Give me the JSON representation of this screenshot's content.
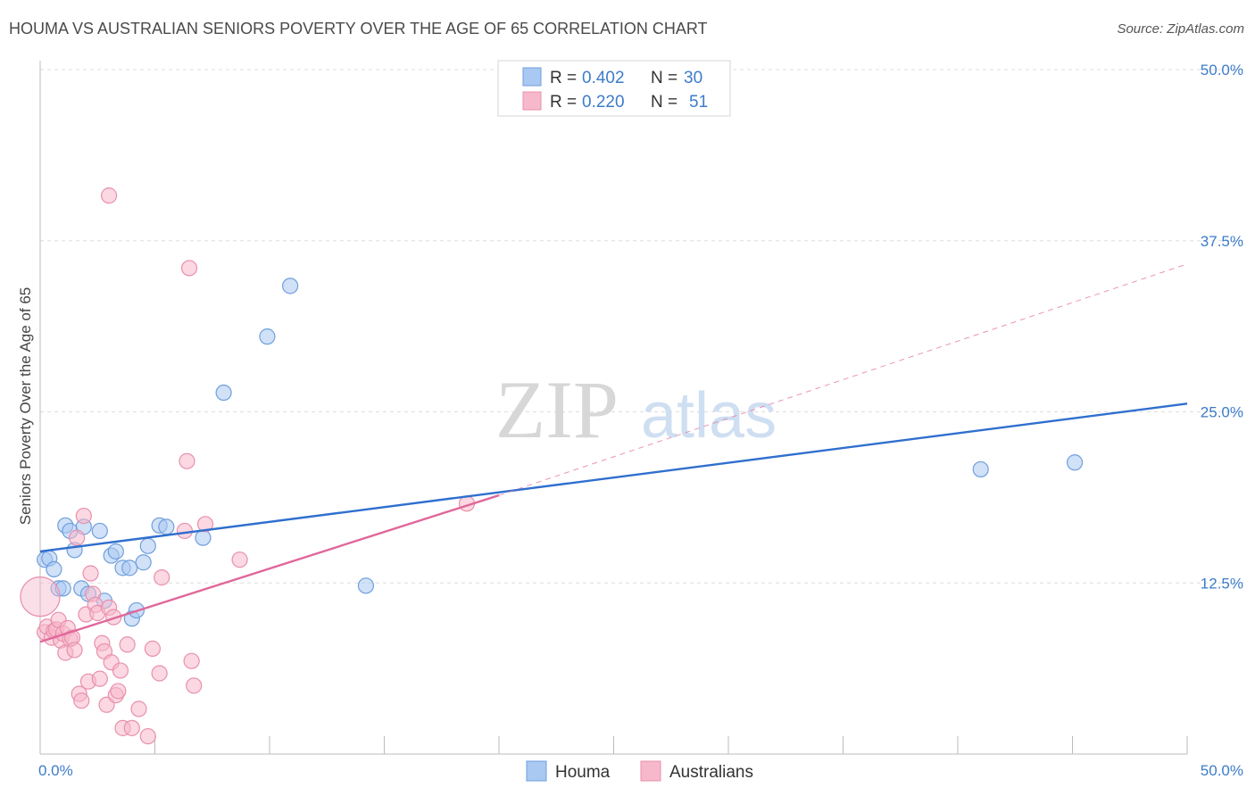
{
  "title": "HOUMA VS AUSTRALIAN SENIORS POVERTY OVER THE AGE OF 65 CORRELATION CHART",
  "source": "Source: ZipAtlas.com",
  "watermark": {
    "zip": "ZIP",
    "atlas": "atlas"
  },
  "chart_data": {
    "type": "scatter",
    "ylabel": "Seniors Poverty Over the Age of 65",
    "xlim": [
      0,
      50
    ],
    "ylim": [
      0,
      50
    ],
    "x_tick_labels": [
      "0.0%",
      "50.0%"
    ],
    "y_ticks": [
      12.5,
      25.0,
      37.5,
      50.0
    ],
    "y_tick_labels": [
      "12.5%",
      "25.0%",
      "37.5%",
      "50.0%"
    ],
    "grid": true,
    "legend_position": "top-center",
    "series": [
      {
        "name": "Houma",
        "color": "#a9c8f2",
        "edge": "#6f9fdc",
        "line_color": "#2f6fcf",
        "r_label": "R =",
        "r_value": "0.402",
        "n_label": "N =",
        "n_value": "30",
        "trend": {
          "x": [
            0,
            50
          ],
          "y": [
            14.8,
            25.6
          ]
        },
        "points": [
          [
            0.2,
            14.2
          ],
          [
            0.4,
            14.3
          ],
          [
            0.6,
            13.5
          ],
          [
            0.8,
            12.1
          ],
          [
            1.0,
            12.1
          ],
          [
            1.1,
            16.7
          ],
          [
            1.3,
            16.3
          ],
          [
            1.5,
            14.9
          ],
          [
            1.8,
            12.1
          ],
          [
            1.9,
            16.6
          ],
          [
            2.1,
            11.7
          ],
          [
            2.6,
            16.3
          ],
          [
            2.8,
            11.2
          ],
          [
            3.1,
            14.5
          ],
          [
            3.3,
            14.8
          ],
          [
            3.6,
            13.6
          ],
          [
            3.9,
            13.6
          ],
          [
            4.0,
            9.9
          ],
          [
            4.2,
            10.5
          ],
          [
            4.5,
            14.0
          ],
          [
            4.7,
            15.2
          ],
          [
            5.2,
            16.7
          ],
          [
            5.5,
            16.6
          ],
          [
            7.1,
            15.8
          ],
          [
            8.0,
            26.4
          ],
          [
            9.9,
            30.5
          ],
          [
            10.9,
            34.2
          ],
          [
            14.2,
            12.3
          ],
          [
            41.0,
            20.8
          ],
          [
            45.1,
            21.3
          ]
        ]
      },
      {
        "name": "Australians",
        "color": "#f7b8cb",
        "edge": "#e890ad",
        "line_color": "#e0679a",
        "r_label": "R =",
        "r_value": "0.220",
        "n_label": "N =",
        "n_value": "51",
        "trend": {
          "x": [
            0,
            20
          ],
          "y": [
            8.2,
            18.9
          ]
        },
        "trend_ext": {
          "x": [
            20,
            50
          ],
          "y": [
            18.9,
            35.8
          ]
        },
        "points": [
          [
            0.0,
            11.5
          ],
          [
            0.2,
            8.9
          ],
          [
            0.3,
            9.3
          ],
          [
            0.5,
            8.5
          ],
          [
            0.6,
            9.0
          ],
          [
            0.7,
            9.1
          ],
          [
            0.8,
            9.8
          ],
          [
            0.9,
            8.3
          ],
          [
            1.0,
            8.8
          ],
          [
            1.1,
            7.4
          ],
          [
            1.2,
            9.2
          ],
          [
            1.3,
            8.4
          ],
          [
            1.4,
            8.5
          ],
          [
            1.5,
            7.6
          ],
          [
            1.6,
            15.8
          ],
          [
            1.7,
            4.4
          ],
          [
            1.8,
            3.9
          ],
          [
            1.9,
            17.4
          ],
          [
            2.0,
            10.2
          ],
          [
            2.1,
            5.3
          ],
          [
            2.2,
            13.2
          ],
          [
            2.3,
            11.7
          ],
          [
            2.4,
            10.9
          ],
          [
            2.5,
            10.3
          ],
          [
            2.6,
            5.5
          ],
          [
            2.7,
            8.1
          ],
          [
            2.8,
            7.5
          ],
          [
            2.9,
            3.6
          ],
          [
            3.0,
            10.7
          ],
          [
            3.1,
            6.7
          ],
          [
            3.2,
            10.0
          ],
          [
            3.3,
            4.3
          ],
          [
            3.4,
            4.6
          ],
          [
            3.5,
            6.1
          ],
          [
            3.6,
            1.9
          ],
          [
            3.8,
            8.0
          ],
          [
            4.0,
            1.9
          ],
          [
            4.3,
            3.3
          ],
          [
            4.7,
            1.3
          ],
          [
            4.9,
            7.7
          ],
          [
            5.2,
            5.9
          ],
          [
            5.3,
            12.9
          ],
          [
            6.3,
            16.3
          ],
          [
            6.4,
            21.4
          ],
          [
            6.5,
            35.5
          ],
          [
            6.6,
            6.8
          ],
          [
            6.7,
            5.0
          ],
          [
            7.2,
            16.8
          ],
          [
            8.7,
            14.2
          ],
          [
            3.0,
            40.8
          ],
          [
            18.6,
            18.3
          ]
        ]
      }
    ]
  }
}
